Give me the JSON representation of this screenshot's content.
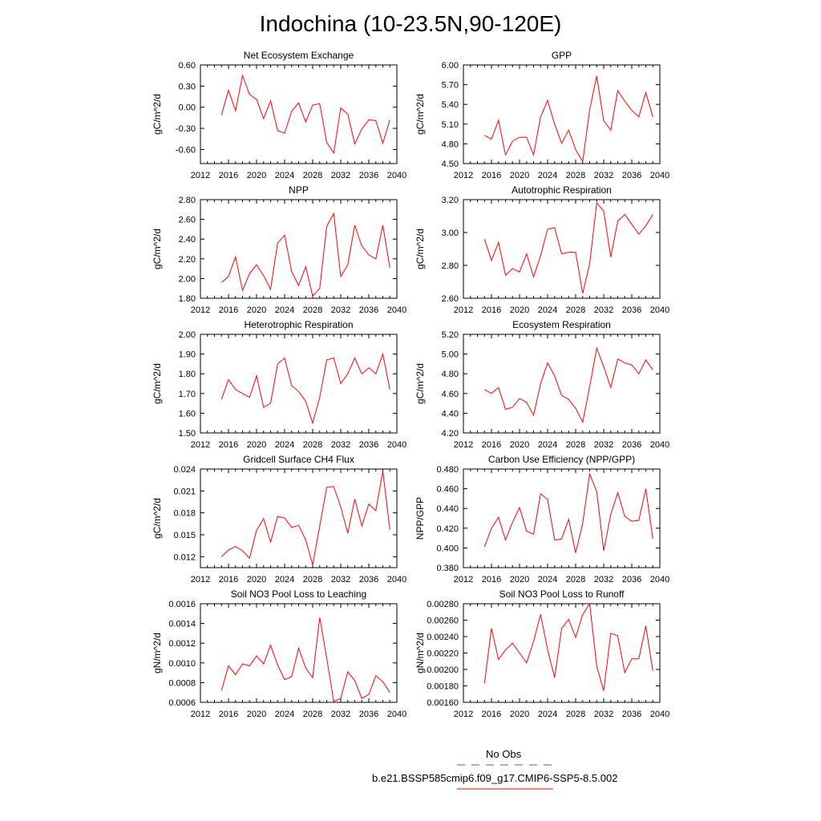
{
  "title": "Indochina (10-23.5N,90-120E)",
  "colors": {
    "model_line": "#ff0000",
    "obs_line": "#5555cc",
    "frame": "#000000"
  },
  "legend": {
    "obs_label": "No Obs",
    "model_label": "b.e21.BSSP585cmip6.f09_g17.CMIP6-SSP5-8.5.002"
  },
  "chart_data": [
    {
      "type": "line",
      "title": "Net Ecosystem Exchange",
      "ylabel": "gC/m^2/d",
      "xlim": [
        2012,
        2040
      ],
      "xticks": [
        "2012",
        "2016",
        "2020",
        "2024",
        "2028",
        "2032",
        "2036",
        "2040"
      ],
      "ylim": [
        -0.8,
        0.6
      ],
      "yticks": [
        "-0.60",
        "-0.30",
        "0.00",
        "0.30",
        "0.60"
      ],
      "x": [
        2015,
        2016,
        2017,
        2018,
        2019,
        2020,
        2021,
        2022,
        2023,
        2024,
        2025,
        2026,
        2027,
        2028,
        2029,
        2030,
        2031,
        2032,
        2033,
        2034,
        2035,
        2036,
        2037,
        2038,
        2039
      ],
      "series": [
        {
          "values": [
            -0.11,
            0.24,
            -0.05,
            0.45,
            0.18,
            0.11,
            -0.16,
            0.09,
            -0.33,
            -0.37,
            -0.06,
            0.06,
            -0.21,
            0.03,
            0.05,
            -0.5,
            -0.65,
            -0.01,
            -0.1,
            -0.52,
            -0.31,
            -0.18,
            -0.19,
            -0.51,
            -0.18
          ]
        }
      ]
    },
    {
      "type": "line",
      "title": "GPP",
      "ylabel": "gC/m^2/d",
      "xlim": [
        2012,
        2040
      ],
      "xticks": [
        "2012",
        "2016",
        "2020",
        "2024",
        "2028",
        "2032",
        "2036",
        "2040"
      ],
      "ylim": [
        4.5,
        6.0
      ],
      "yticks": [
        "4.50",
        "4.80",
        "5.10",
        "5.40",
        "5.70",
        "6.00"
      ],
      "x": [
        2015,
        2016,
        2017,
        2018,
        2019,
        2020,
        2021,
        2022,
        2023,
        2024,
        2025,
        2026,
        2027,
        2028,
        2029,
        2030,
        2031,
        2032,
        2033,
        2034,
        2035,
        2036,
        2037,
        2038,
        2039
      ],
      "series": [
        {
          "values": [
            4.93,
            4.87,
            5.16,
            4.63,
            4.84,
            4.9,
            4.9,
            4.63,
            5.21,
            5.46,
            5.1,
            4.81,
            5.01,
            4.71,
            4.53,
            5.32,
            5.83,
            5.15,
            5.01,
            5.61,
            5.45,
            5.31,
            5.21,
            5.58,
            5.21
          ]
        }
      ]
    },
    {
      "type": "line",
      "title": "NPP",
      "ylabel": "gC/m^2/d",
      "xlim": [
        2012,
        2040
      ],
      "xticks": [
        "2012",
        "2016",
        "2020",
        "2024",
        "2028",
        "2032",
        "2036",
        "2040"
      ],
      "ylim": [
        1.8,
        2.8
      ],
      "yticks": [
        "1.80",
        "2.00",
        "2.20",
        "2.40",
        "2.60",
        "2.80"
      ],
      "x": [
        2015,
        2016,
        2017,
        2018,
        2019,
        2020,
        2021,
        2022,
        2023,
        2024,
        2025,
        2026,
        2027,
        2028,
        2029,
        2030,
        2031,
        2032,
        2033,
        2034,
        2035,
        2036,
        2037,
        2038,
        2039
      ],
      "series": [
        {
          "values": [
            1.96,
            2.02,
            2.22,
            1.88,
            2.05,
            2.14,
            2.03,
            1.89,
            2.36,
            2.44,
            2.07,
            1.93,
            2.12,
            1.82,
            1.9,
            2.53,
            2.66,
            2.02,
            2.14,
            2.54,
            2.33,
            2.24,
            2.2,
            2.54,
            2.11
          ]
        }
      ]
    },
    {
      "type": "line",
      "title": "Autotrophic Respiration",
      "ylabel": "gC/m^2/d",
      "xlim": [
        2012,
        2040
      ],
      "xticks": [
        "2012",
        "2016",
        "2020",
        "2024",
        "2028",
        "2032",
        "2036",
        "2040"
      ],
      "ylim": [
        2.6,
        3.2
      ],
      "yticks": [
        "2.60",
        "2.80",
        "3.00",
        "3.20"
      ],
      "x": [
        2015,
        2016,
        2017,
        2018,
        2019,
        2020,
        2021,
        2022,
        2023,
        2024,
        2025,
        2026,
        2027,
        2028,
        2029,
        2030,
        2031,
        2032,
        2033,
        2034,
        2035,
        2036,
        2037,
        2038,
        2039
      ],
      "series": [
        {
          "values": [
            2.96,
            2.83,
            2.94,
            2.74,
            2.78,
            2.76,
            2.87,
            2.73,
            2.86,
            3.02,
            3.03,
            2.87,
            2.88,
            2.88,
            2.63,
            2.81,
            3.18,
            3.13,
            2.85,
            3.07,
            3.11,
            3.05,
            2.99,
            3.04,
            3.11
          ]
        }
      ]
    },
    {
      "type": "line",
      "title": "Heterotrophic Respiration",
      "ylabel": "gC/m^2/d",
      "xlim": [
        2012,
        2040
      ],
      "xticks": [
        "2012",
        "2016",
        "2020",
        "2024",
        "2028",
        "2032",
        "2036",
        "2040"
      ],
      "ylim": [
        1.5,
        2.0
      ],
      "yticks": [
        "1.50",
        "1.60",
        "1.70",
        "1.80",
        "1.90",
        "2.00"
      ],
      "x": [
        2015,
        2016,
        2017,
        2018,
        2019,
        2020,
        2021,
        2022,
        2023,
        2024,
        2025,
        2026,
        2027,
        2028,
        2029,
        2030,
        2031,
        2032,
        2033,
        2034,
        2035,
        2036,
        2037,
        2038,
        2039
      ],
      "series": [
        {
          "values": [
            1.67,
            1.77,
            1.72,
            1.7,
            1.68,
            1.79,
            1.63,
            1.65,
            1.85,
            1.88,
            1.74,
            1.71,
            1.66,
            1.55,
            1.68,
            1.87,
            1.88,
            1.75,
            1.8,
            1.88,
            1.8,
            1.83,
            1.8,
            1.9,
            1.72
          ]
        }
      ]
    },
    {
      "type": "line",
      "title": "Ecosystem Respiration",
      "ylabel": "gC/m^2/d",
      "xlim": [
        2012,
        2040
      ],
      "xticks": [
        "2012",
        "2016",
        "2020",
        "2024",
        "2028",
        "2032",
        "2036",
        "2040"
      ],
      "ylim": [
        4.2,
        5.2
      ],
      "yticks": [
        "4.20",
        "4.40",
        "4.60",
        "4.80",
        "5.00",
        "5.20"
      ],
      "x": [
        2015,
        2016,
        2017,
        2018,
        2019,
        2020,
        2021,
        2022,
        2023,
        2024,
        2025,
        2026,
        2027,
        2028,
        2029,
        2030,
        2031,
        2032,
        2033,
        2034,
        2035,
        2036,
        2037,
        2038,
        2039
      ],
      "series": [
        {
          "values": [
            4.64,
            4.6,
            4.66,
            4.44,
            4.46,
            4.55,
            4.51,
            4.38,
            4.7,
            4.91,
            4.78,
            4.58,
            4.54,
            4.45,
            4.31,
            4.67,
            5.06,
            4.87,
            4.66,
            4.95,
            4.91,
            4.89,
            4.8,
            4.94,
            4.84
          ]
        }
      ]
    },
    {
      "type": "line",
      "title": "Gridcell Surface CH4 Flux",
      "ylabel": "gC/m^2/d",
      "xlim": [
        2012,
        2040
      ],
      "xticks": [
        "2012",
        "2016",
        "2020",
        "2024",
        "2028",
        "2032",
        "2036",
        "2040"
      ],
      "ylim": [
        0.0105,
        0.024
      ],
      "yticks": [
        "0.012",
        "0.015",
        "0.018",
        "0.021",
        "0.024"
      ],
      "x": [
        2015,
        2016,
        2017,
        2018,
        2019,
        2020,
        2021,
        2022,
        2023,
        2024,
        2025,
        2026,
        2027,
        2028,
        2029,
        2030,
        2031,
        2032,
        2033,
        2034,
        2035,
        2036,
        2037,
        2038,
        2039
      ],
      "series": [
        {
          "values": [
            0.012,
            0.0129,
            0.0134,
            0.0128,
            0.0118,
            0.0156,
            0.0172,
            0.014,
            0.0175,
            0.0173,
            0.016,
            0.0163,
            0.0143,
            0.0109,
            0.0162,
            0.0215,
            0.0216,
            0.0188,
            0.0152,
            0.0199,
            0.0162,
            0.0192,
            0.0183,
            0.0237,
            0.0157
          ]
        }
      ]
    },
    {
      "type": "line",
      "title": "Carbon Use Efficiency (NPP/GPP)",
      "ylabel": "NPP/GPP",
      "xlim": [
        2012,
        2040
      ],
      "xticks": [
        "2012",
        "2016",
        "2020",
        "2024",
        "2028",
        "2032",
        "2036",
        "2040"
      ],
      "ylim": [
        0.38,
        0.48
      ],
      "yticks": [
        "0.380",
        "0.400",
        "0.420",
        "0.440",
        "0.460",
        "0.480"
      ],
      "x": [
        2015,
        2016,
        2017,
        2018,
        2019,
        2020,
        2021,
        2022,
        2023,
        2024,
        2025,
        2026,
        2027,
        2028,
        2029,
        2030,
        2031,
        2032,
        2033,
        2034,
        2035,
        2036,
        2037,
        2038,
        2039
      ],
      "series": [
        {
          "values": [
            0.401,
            0.42,
            0.431,
            0.408,
            0.426,
            0.441,
            0.417,
            0.414,
            0.455,
            0.449,
            0.408,
            0.409,
            0.429,
            0.395,
            0.425,
            0.475,
            0.457,
            0.397,
            0.434,
            0.456,
            0.432,
            0.427,
            0.428,
            0.46,
            0.409
          ]
        }
      ]
    },
    {
      "type": "line",
      "title": "Soil NO3 Pool Loss to Leaching",
      "ylabel": "gN/m^2/d",
      "xlim": [
        2012,
        2040
      ],
      "xticks": [
        "2012",
        "2016",
        "2020",
        "2024",
        "2028",
        "2032",
        "2036",
        "2040"
      ],
      "ylim": [
        0.0006,
        0.0016
      ],
      "yticks": [
        "0.0006",
        "0.0008",
        "0.0010",
        "0.0012",
        "0.0014",
        "0.0016"
      ],
      "x": [
        2015,
        2016,
        2017,
        2018,
        2019,
        2020,
        2021,
        2022,
        2023,
        2024,
        2025,
        2026,
        2027,
        2028,
        2029,
        2030,
        2031,
        2032,
        2033,
        2034,
        2035,
        2036,
        2037,
        2038,
        2039
      ],
      "series": [
        {
          "values": [
            0.00072,
            0.00097,
            0.00088,
            0.00099,
            0.00097,
            0.00107,
            0.00099,
            0.00118,
            0.00098,
            0.00083,
            0.00086,
            0.00115,
            0.00095,
            0.00085,
            0.00146,
            0.00105,
            0.00061,
            0.00064,
            0.00091,
            0.00082,
            0.00064,
            0.00068,
            0.00087,
            0.00081,
            0.0007
          ]
        }
      ]
    },
    {
      "type": "line",
      "title": "Soil NO3 Pool Loss to Runoff",
      "ylabel": "gN/m^2/d",
      "xlim": [
        2012,
        2040
      ],
      "xticks": [
        "2012",
        "2016",
        "2020",
        "2024",
        "2028",
        "2032",
        "2036",
        "2040"
      ],
      "ylim": [
        0.0016,
        0.0028
      ],
      "yticks": [
        "0.00160",
        "0.00180",
        "0.00200",
        "0.00220",
        "0.00240",
        "0.00260",
        "0.00280"
      ],
      "x": [
        2015,
        2016,
        2017,
        2018,
        2019,
        2020,
        2021,
        2022,
        2023,
        2024,
        2025,
        2026,
        2027,
        2028,
        2029,
        2030,
        2031,
        2032,
        2033,
        2034,
        2035,
        2036,
        2037,
        2038,
        2039
      ],
      "series": [
        {
          "values": [
            0.00183,
            0.0025,
            0.00212,
            0.00224,
            0.00232,
            0.0022,
            0.00208,
            0.00234,
            0.00267,
            0.00224,
            0.0019,
            0.0025,
            0.00261,
            0.00239,
            0.00267,
            0.0028,
            0.00204,
            0.00174,
            0.00244,
            0.00241,
            0.00196,
            0.00213,
            0.00213,
            0.00253,
            0.00198
          ]
        }
      ]
    }
  ]
}
